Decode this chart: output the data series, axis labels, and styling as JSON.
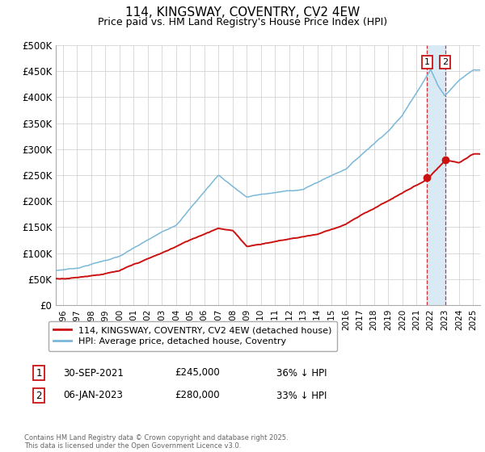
{
  "title": "114, KINGSWAY, COVENTRY, CV2 4EW",
  "subtitle": "Price paid vs. HM Land Registry's House Price Index (HPI)",
  "ylim": [
    0,
    500000
  ],
  "yticks": [
    0,
    50000,
    100000,
    150000,
    200000,
    250000,
    300000,
    350000,
    400000,
    450000,
    500000
  ],
  "ytick_labels": [
    "£0",
    "£50K",
    "£100K",
    "£150K",
    "£200K",
    "£250K",
    "£300K",
    "£350K",
    "£400K",
    "£450K",
    "£500K"
  ],
  "hpi_color": "#7ab8d9",
  "price_color": "#cc1111",
  "annotation_box_color": "#cc1111",
  "shade_color": "#daeaf5",
  "grid_color": "#cccccc",
  "legend_label_price": "114, KINGSWAY, COVENTRY, CV2 4EW (detached house)",
  "legend_label_hpi": "HPI: Average price, detached house, Coventry",
  "transaction1_date": "30-SEP-2021",
  "transaction1_price": "£245,000",
  "transaction1_hpi": "36% ↓ HPI",
  "transaction2_date": "06-JAN-2023",
  "transaction2_price": "£280,000",
  "transaction2_hpi": "33% ↓ HPI",
  "footnote": "Contains HM Land Registry data © Crown copyright and database right 2025.\nThis data is licensed under the Open Government Licence v3.0.",
  "xlim_start": 1995.5,
  "xlim_end": 2025.5,
  "t1_year": 2021.75,
  "t1_price": 245000,
  "t2_year": 2023.02,
  "t2_price": 280000
}
